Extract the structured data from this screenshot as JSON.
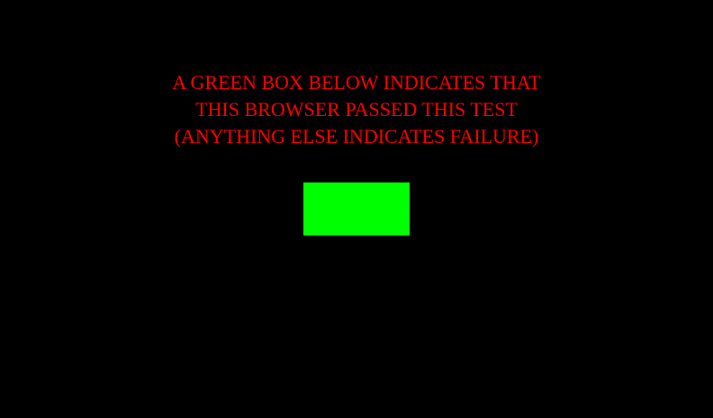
{
  "message": {
    "lines": [
      "A GREEN BOX BELOW INDICATES THAT",
      "THIS BROWSER PASSED THIS TEST",
      "(ANYTHING ELSE INDICATES FAILURE)"
    ],
    "color": "#ff0000"
  },
  "result_box": {
    "color": "#00ff00"
  },
  "background": "#000000"
}
